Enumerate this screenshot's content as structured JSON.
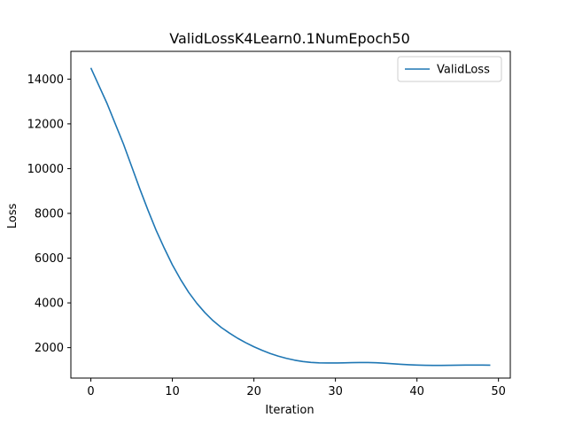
{
  "chart_data": {
    "type": "line",
    "title": "ValidLossK4Learn0.1NumEpoch50",
    "xlabel": "Iteration",
    "ylabel": "Loss",
    "xlim": [
      -2.45,
      51.45
    ],
    "ylim": [
      640,
      15240
    ],
    "xticks": [
      0,
      10,
      20,
      30,
      40,
      50
    ],
    "yticks": [
      2000,
      4000,
      6000,
      8000,
      10000,
      12000,
      14000
    ],
    "grid": false,
    "legend": {
      "position": "top-right"
    },
    "colors": {
      "series": "#1f77b4",
      "axes": "#000000",
      "background": "#ffffff"
    },
    "series": [
      {
        "name": "ValidLoss",
        "x": [
          0,
          1,
          2,
          3,
          4,
          5,
          6,
          7,
          8,
          9,
          10,
          11,
          12,
          13,
          14,
          15,
          16,
          17,
          18,
          19,
          20,
          21,
          22,
          23,
          24,
          25,
          26,
          27,
          28,
          29,
          30,
          31,
          32,
          33,
          34,
          35,
          36,
          37,
          38,
          39,
          40,
          41,
          42,
          43,
          44,
          45,
          46,
          47,
          48,
          49
        ],
        "values": [
          14500,
          13700,
          12900,
          12000,
          11100,
          10100,
          9100,
          8150,
          7250,
          6450,
          5700,
          5050,
          4470,
          3980,
          3560,
          3200,
          2900,
          2650,
          2420,
          2220,
          2040,
          1880,
          1740,
          1620,
          1520,
          1440,
          1380,
          1340,
          1320,
          1315,
          1315,
          1320,
          1330,
          1335,
          1335,
          1325,
          1305,
          1280,
          1255,
          1235,
          1220,
          1210,
          1205,
          1205,
          1210,
          1215,
          1220,
          1220,
          1220,
          1215
        ]
      }
    ]
  }
}
